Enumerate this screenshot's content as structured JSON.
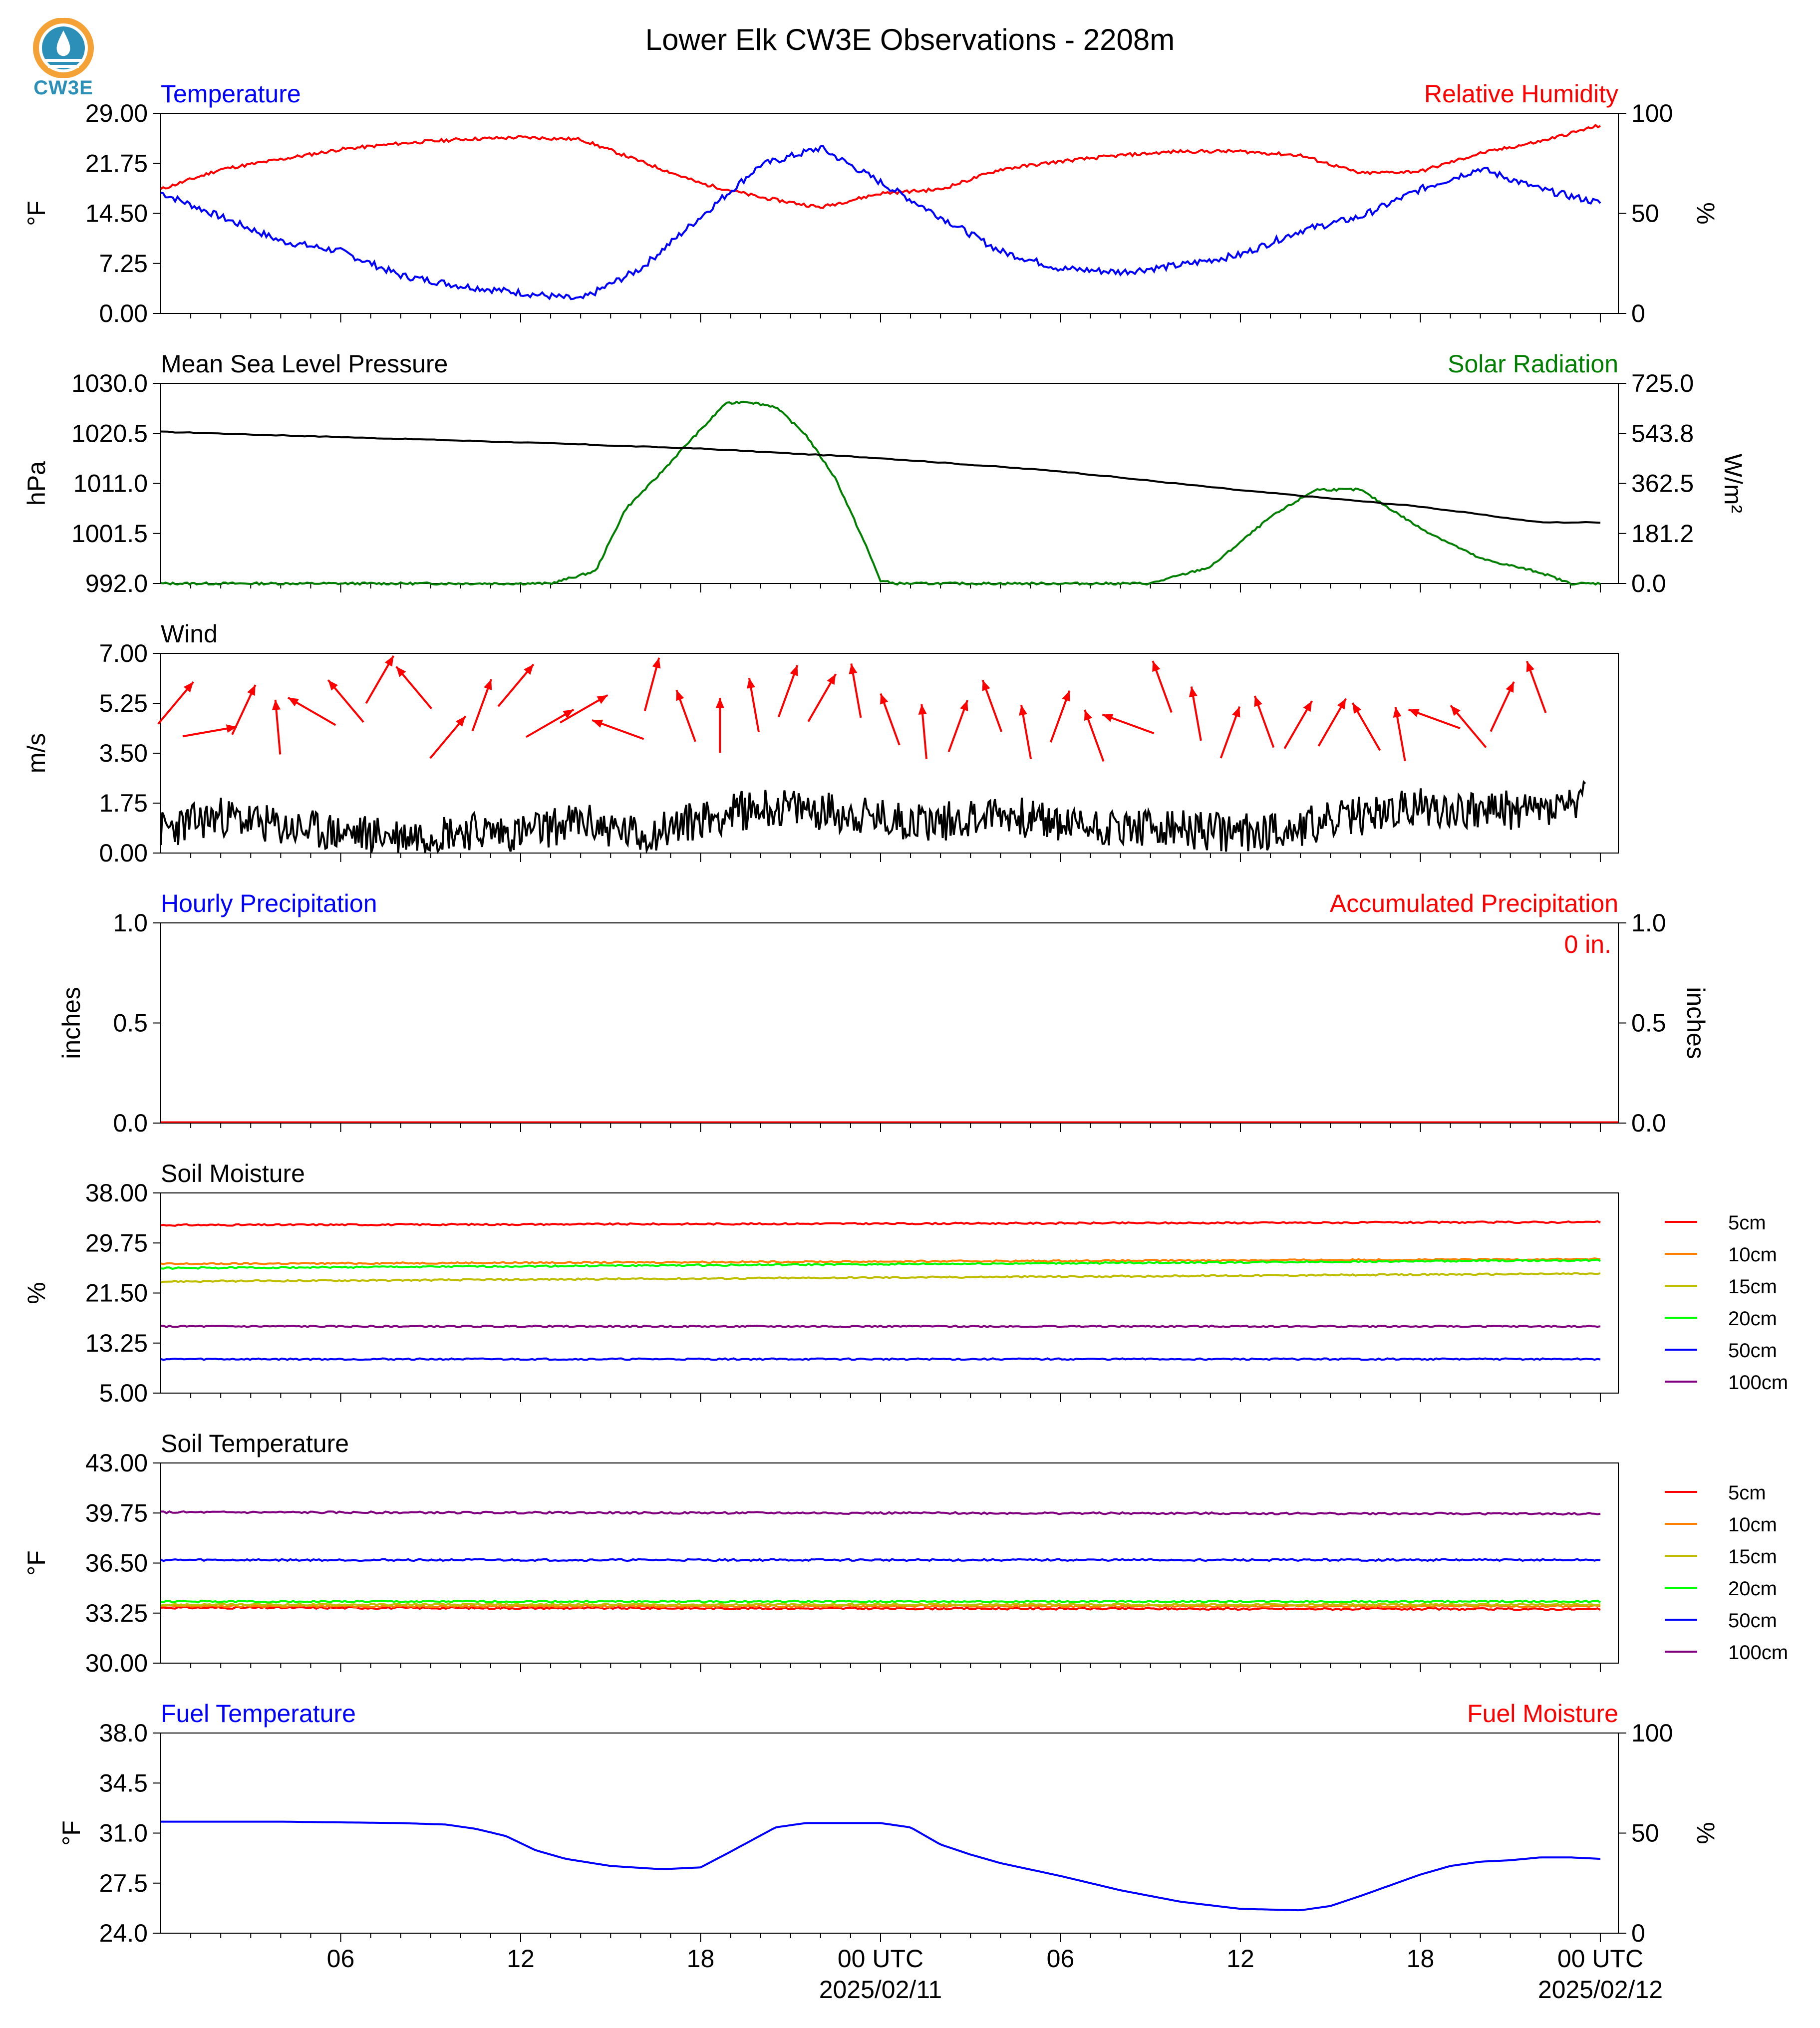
{
  "title": "Lower Elk CW3E Observations - 2208m",
  "logo_text": "CW3E",
  "colors": {
    "blue": "#0000ff",
    "red": "#ff0000",
    "black": "#000000",
    "green": "#007f00",
    "logo": "#2b8fb8",
    "logo_orange": "#f4a236"
  },
  "x_axis": {
    "ticks": [
      "06",
      "12",
      "18",
      "00 UTC",
      "06",
      "12",
      "18",
      "00 UTC"
    ],
    "dates": [
      "2025/02/11",
      "2025/02/12"
    ]
  },
  "panels": {
    "temp_rh": {
      "left_title": "Temperature",
      "right_title": "Relative Humidity",
      "left_unit": "°F",
      "right_unit": "%",
      "left_ticks": [
        "29.00",
        "21.75",
        "14.50",
        "7.25",
        "0.00"
      ],
      "right_ticks": [
        "100",
        "50",
        "0"
      ]
    },
    "pressure_solar": {
      "left_title": "Mean Sea Level Pressure",
      "right_title": "Solar Radiation",
      "left_unit": "hPa",
      "right_unit": "W/m²",
      "left_ticks": [
        "1030.0",
        "1020.5",
        "1011.0",
        "1001.5",
        "992.0"
      ],
      "right_ticks": [
        "725.0",
        "543.8",
        "362.5",
        "181.2",
        "0.0"
      ]
    },
    "wind": {
      "left_title": "Wind",
      "left_unit": "m/s",
      "left_ticks": [
        "7.00",
        "5.25",
        "3.50",
        "1.75",
        "0.00"
      ]
    },
    "precip": {
      "left_title": "Hourly Precipitation",
      "right_title": "Accumulated Precipitation",
      "left_unit": "inches",
      "right_unit": "inches",
      "left_ticks": [
        "1.0",
        "0.5",
        "0.0"
      ],
      "right_ticks": [
        "1.0",
        "0.5",
        "0.0"
      ],
      "annotation": "0 in."
    },
    "soil_moisture": {
      "left_title": "Soil Moisture",
      "left_unit": "%",
      "left_ticks": [
        "38.00",
        "29.75",
        "21.50",
        "13.25",
        "5.00"
      ],
      "legend": [
        "5cm",
        "10cm",
        "15cm",
        "20cm",
        "50cm",
        "100cm"
      ]
    },
    "soil_temp": {
      "left_title": "Soil Temperature",
      "left_unit": "°F",
      "left_ticks": [
        "43.00",
        "39.75",
        "36.50",
        "33.25",
        "30.00"
      ],
      "legend": [
        "5cm",
        "10cm",
        "15cm",
        "20cm",
        "50cm",
        "100cm"
      ]
    },
    "fuel": {
      "left_title": "Fuel Temperature",
      "right_title": "Fuel Moisture",
      "left_unit": "°F",
      "right_unit": "%",
      "left_ticks": [
        "38.0",
        "34.5",
        "31.0",
        "27.5",
        "24.0"
      ],
      "right_ticks": [
        "100",
        "50",
        "0"
      ]
    }
  },
  "chart_data": [
    {
      "type": "line",
      "title": "Temperature",
      "x_hours": [
        0,
        2,
        4,
        6,
        8,
        10,
        12,
        14,
        16,
        18,
        20,
        22,
        24,
        26,
        28,
        30,
        32,
        34,
        36,
        38,
        40,
        42,
        44,
        46,
        48
      ],
      "ylabel": "°F",
      "ylim": [
        0,
        29
      ],
      "series": [
        {
          "name": "Temperature",
          "values": [
            17.5,
            14,
            10.5,
            9,
            5.5,
            4,
            3,
            2,
            6.5,
            14,
            21.5,
            24,
            19,
            14,
            9,
            6.5,
            6,
            7,
            8.5,
            12,
            14,
            18,
            21,
            18,
            16
          ]
        }
      ]
    },
    {
      "type": "line",
      "title": "Relative Humidity",
      "x_hours": [
        0,
        2,
        4,
        6,
        8,
        10,
        12,
        14,
        16,
        18,
        20,
        22,
        24,
        26,
        28,
        30,
        32,
        34,
        36,
        38,
        40,
        42,
        44,
        46,
        48
      ],
      "ylabel": "%",
      "ylim": [
        0,
        100
      ],
      "series": [
        {
          "name": "Relative Humidity",
          "values": [
            62,
            72,
            77,
            82,
            85,
            87,
            88,
            87,
            76,
            65,
            58,
            53,
            60,
            62,
            72,
            76,
            79,
            81,
            81,
            79,
            70,
            71,
            80,
            86,
            94
          ]
        }
      ]
    },
    {
      "type": "line",
      "title": "Mean Sea Level Pressure",
      "x_hours": [
        0,
        6,
        12,
        18,
        24,
        30,
        36,
        42,
        46,
        48
      ],
      "ylabel": "hPa",
      "ylim": [
        992,
        1030
      ],
      "series": [
        {
          "name": "Mean Sea Level Pressure",
          "values": [
            1020.8,
            1019.8,
            1018.8,
            1017.6,
            1015.8,
            1013.3,
            1009.7,
            1006.6,
            1003.6,
            1003.6
          ]
        }
      ]
    },
    {
      "type": "line",
      "title": "Solar Radiation",
      "x_hours": [
        0,
        13,
        14.5,
        15.5,
        16.5,
        17.5,
        18.3,
        18.8,
        19.5,
        20.5,
        21.5,
        22.5,
        23.5,
        24,
        24.5,
        25,
        33,
        35,
        37,
        38.5,
        40,
        42,
        44,
        46,
        47,
        48
      ],
      "ylabel": "W/m²",
      "ylim": [
        0,
        725
      ],
      "series": [
        {
          "name": "Solar Radiation",
          "values": [
            0,
            0,
            45,
            270,
            380,
            500,
            590,
            650,
            660,
            640,
            540,
            380,
            140,
            10,
            0,
            0,
            0,
            60,
            240,
            340,
            340,
            200,
            90,
            40,
            0,
            0
          ]
        }
      ]
    },
    {
      "type": "line",
      "title": "Wind",
      "x_hours": [
        0,
        2,
        4,
        6,
        8,
        10,
        12,
        14,
        16,
        18,
        20,
        22,
        24,
        26,
        28,
        30,
        32,
        34,
        36,
        38,
        40,
        42,
        44,
        46,
        48
      ],
      "ylabel": "m/s",
      "ylim": [
        0,
        7
      ],
      "series": [
        {
          "name": "Wind Speed",
          "values": [
            0.8,
            1.3,
            0.9,
            0.7,
            0.6,
            0.8,
            0.7,
            1.1,
            0.6,
            1.2,
            1.6,
            1.5,
            1.2,
            1.1,
            1.4,
            1.0,
            0.9,
            0.8,
            0.7,
            0.9,
            1.3,
            1.6,
            1.5,
            1.5,
            1.9
          ]
        }
      ],
      "arrow_directions_deg": [
        40,
        80,
        25,
        355,
        300,
        320,
        30,
        320,
        40,
        20,
        40,
        60,
        60,
        290,
        15,
        340,
        0,
        350,
        20,
        30,
        350,
        340,
        355,
        20,
        340,
        350,
        20,
        340,
        290,
        340,
        350,
        20,
        340,
        30,
        30,
        330,
        350,
        290,
        320,
        25,
        340
      ]
    },
    {
      "type": "line",
      "title": "Hourly Precipitation",
      "x_hours": [
        0,
        48
      ],
      "ylabel": "inches",
      "ylim": [
        0,
        1
      ],
      "series": [
        {
          "name": "Accumulated Precipitation",
          "values": [
            0,
            0
          ]
        }
      ]
    },
    {
      "type": "line",
      "title": "Soil Moisture",
      "x_hours": [
        0,
        48
      ],
      "ylabel": "%",
      "ylim": [
        5,
        38
      ],
      "series": [
        {
          "name": "5cm",
          "values": [
            32.7,
            33.2
          ]
        },
        {
          "name": "10cm",
          "values": [
            26.3,
            27.1
          ]
        },
        {
          "name": "15cm",
          "values": [
            23.4,
            24.7
          ]
        },
        {
          "name": "20cm",
          "values": [
            25.6,
            26.9
          ]
        },
        {
          "name": "50cm",
          "values": [
            10.6,
            10.6
          ]
        },
        {
          "name": "100cm",
          "values": [
            16.0,
            16.0
          ]
        }
      ]
    },
    {
      "type": "line",
      "title": "Soil Temperature",
      "x_hours": [
        0,
        48
      ],
      "ylabel": "°F",
      "ylim": [
        30,
        43
      ],
      "series": [
        {
          "name": "5cm",
          "values": [
            33.6,
            33.5
          ]
        },
        {
          "name": "10cm",
          "values": [
            33.7,
            33.7
          ]
        },
        {
          "name": "15cm",
          "values": [
            33.8,
            33.8
          ]
        },
        {
          "name": "20cm",
          "values": [
            34.0,
            34.0
          ]
        },
        {
          "name": "50cm",
          "values": [
            36.7,
            36.7
          ]
        },
        {
          "name": "100cm",
          "values": [
            39.8,
            39.7
          ]
        }
      ]
    },
    {
      "type": "line",
      "title": "Fuel Temperature",
      "x_hours": [
        0,
        4,
        8,
        9.5,
        10.5,
        11.5,
        12.5,
        13.5,
        15,
        16.5,
        17,
        18,
        19,
        20.5,
        21.5,
        23,
        24,
        25,
        26,
        27,
        28,
        30,
        32,
        34,
        36,
        38,
        39,
        40,
        42,
        43,
        44,
        45,
        46,
        47,
        48
      ],
      "ylabel": "°F",
      "ylim": [
        24,
        38
      ],
      "series": [
        {
          "name": "Fuel Temperature",
          "values": [
            31.8,
            31.8,
            31.7,
            31.6,
            31.3,
            30.8,
            29.8,
            29.2,
            28.7,
            28.5,
            28.5,
            28.6,
            29.7,
            31.4,
            31.7,
            31.7,
            31.7,
            31.4,
            30.2,
            29.5,
            28.9,
            28.0,
            27.0,
            26.2,
            25.7,
            25.6,
            25.9,
            26.6,
            28.1,
            28.7,
            29.0,
            29.1,
            29.3,
            29.3,
            29.2
          ]
        }
      ]
    }
  ]
}
